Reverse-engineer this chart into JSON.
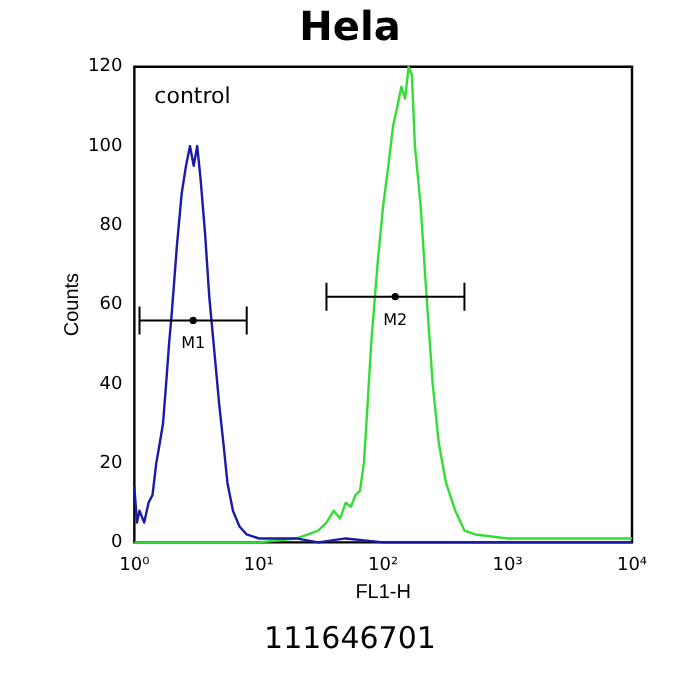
{
  "chart_data": {
    "type": "line",
    "title": "Hela",
    "xlabel": "FL1-H",
    "ylabel": "Counts",
    "log": "x",
    "xlim": [
      1,
      10000
    ],
    "xticks": [
      {
        "value": 1,
        "label": "10⁰"
      },
      {
        "value": 10,
        "label": "10¹"
      },
      {
        "value": 100,
        "label": "10²"
      },
      {
        "value": 1000,
        "label": "10³"
      },
      {
        "value": 10000,
        "label": "10⁴"
      }
    ],
    "ylim": [
      0,
      120
    ],
    "yticks": [
      0,
      20,
      40,
      60,
      80,
      100,
      120
    ],
    "grid": false,
    "legend": false,
    "line_style": "solid",
    "series": [
      {
        "color": "#1a1aa6",
        "x": [
          1,
          1.05,
          1.1,
          1.2,
          1.3,
          1.4,
          1.5,
          1.6,
          1.7,
          1.8,
          1.9,
          2,
          2.2,
          2.4,
          2.6,
          2.8,
          3,
          3.2,
          3.4,
          3.7,
          4,
          4.4,
          4.8,
          5.2,
          5.6,
          6.2,
          7,
          8,
          10,
          15,
          20,
          30,
          50,
          100,
          10000
        ],
        "values": [
          14,
          5,
          8,
          5,
          10,
          12,
          20,
          25,
          30,
          40,
          50,
          58,
          75,
          88,
          95,
          100,
          95,
          100,
          92,
          78,
          62,
          48,
          35,
          25,
          15,
          8,
          4,
          2,
          1,
          1,
          1,
          0,
          1,
          0,
          0
        ]
      },
      {
        "color": "#33dd33",
        "x": [
          1,
          10,
          20,
          25,
          30,
          35,
          40,
          45,
          50,
          55,
          60,
          65,
          70,
          75,
          80,
          90,
          100,
          110,
          120,
          130,
          140,
          150,
          160,
          170,
          180,
          200,
          220,
          250,
          280,
          320,
          380,
          450,
          550,
          1000,
          10000
        ],
        "values": [
          0,
          0,
          1,
          2,
          3,
          5,
          8,
          6,
          10,
          9,
          12,
          13,
          20,
          35,
          50,
          70,
          85,
          95,
          105,
          110,
          115,
          112,
          120,
          118,
          100,
          85,
          65,
          40,
          25,
          15,
          8,
          3,
          2,
          1,
          1
        ]
      },
      {
        "type": "scatter",
        "color": "#000000",
        "x": [
          2.97
        ],
        "values": [
          56
        ],
        "xerrors": [
          [
            1.1,
            8
          ]
        ]
      },
      {
        "type": "scatter",
        "color": "#000000",
        "x": [
          125
        ],
        "values": [
          62
        ],
        "xerrors": [
          [
            35,
            450
          ]
        ]
      }
    ],
    "annotations": [
      "control",
      "M1",
      "M2",
      "111646701"
    ]
  }
}
